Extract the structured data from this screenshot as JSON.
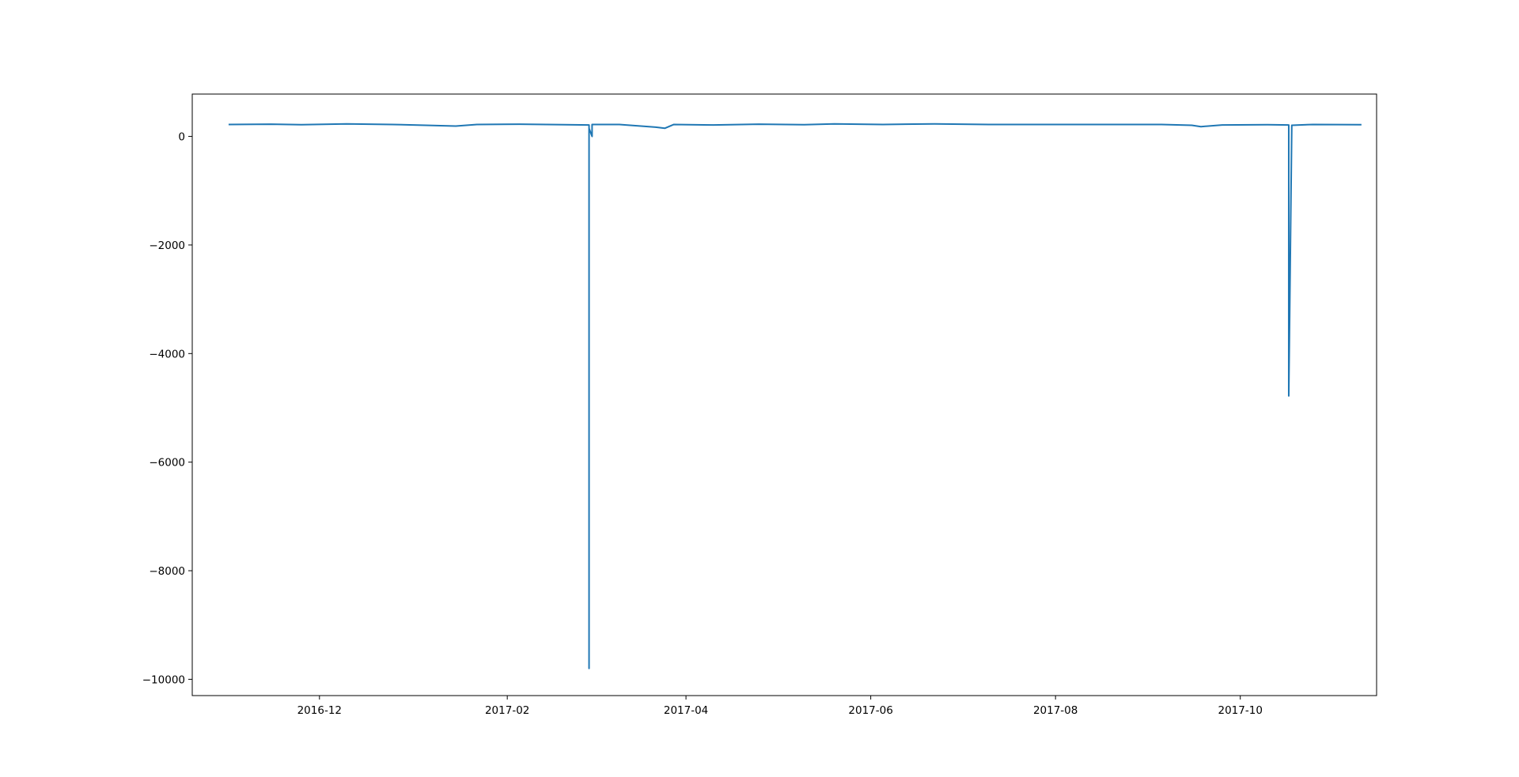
{
  "chart_data": {
    "type": "line",
    "title": "",
    "xlabel": "",
    "ylabel": "",
    "x_is_date": true,
    "xlim": [
      "2016-10-20",
      "2017-11-15"
    ],
    "ylim": [
      -10300,
      780
    ],
    "xticks": [
      {
        "date": "2016-12-01",
        "label": "2016-12"
      },
      {
        "date": "2017-02-01",
        "label": "2017-02"
      },
      {
        "date": "2017-04-01",
        "label": "2017-04"
      },
      {
        "date": "2017-06-01",
        "label": "2017-06"
      },
      {
        "date": "2017-08-01",
        "label": "2017-08"
      },
      {
        "date": "2017-10-01",
        "label": "2017-10"
      }
    ],
    "yticks": [
      {
        "value": 0,
        "label": "0"
      },
      {
        "value": -2000,
        "label": "−2000"
      },
      {
        "value": -4000,
        "label": "−4000"
      },
      {
        "value": -6000,
        "label": "−6000"
      },
      {
        "value": -8000,
        "label": "−8000"
      },
      {
        "value": -10000,
        "label": "−10000"
      }
    ],
    "grid": false,
    "legend": "none",
    "series": [
      {
        "color": "#1f77b4",
        "x": [
          "2016-11-01",
          "2016-11-15",
          "2016-11-25",
          "2016-12-10",
          "2016-12-25",
          "2017-01-05",
          "2017-01-15",
          "2017-01-22",
          "2017-02-05",
          "2017-02-20",
          "2017-02-28",
          "2017-02-28",
          "2017-02-28",
          "2017-03-01",
          "2017-03-01",
          "2017-03-10",
          "2017-03-22",
          "2017-03-25",
          "2017-03-28",
          "2017-04-10",
          "2017-04-25",
          "2017-05-10",
          "2017-05-20",
          "2017-06-05",
          "2017-06-22",
          "2017-07-10",
          "2017-08-01",
          "2017-08-20",
          "2017-09-05",
          "2017-09-15",
          "2017-09-18",
          "2017-09-25",
          "2017-10-10",
          "2017-10-17",
          "2017-10-17",
          "2017-10-18",
          "2017-10-25",
          "2017-11-10"
        ],
        "y": [
          220,
          225,
          215,
          230,
          220,
          205,
          190,
          220,
          225,
          215,
          210,
          -9800,
          150,
          0,
          220,
          220,
          170,
          150,
          220,
          210,
          225,
          215,
          230,
          220,
          230,
          220,
          220,
          220,
          220,
          205,
          180,
          210,
          215,
          210,
          -4780,
          205,
          220,
          215
        ]
      }
    ]
  }
}
